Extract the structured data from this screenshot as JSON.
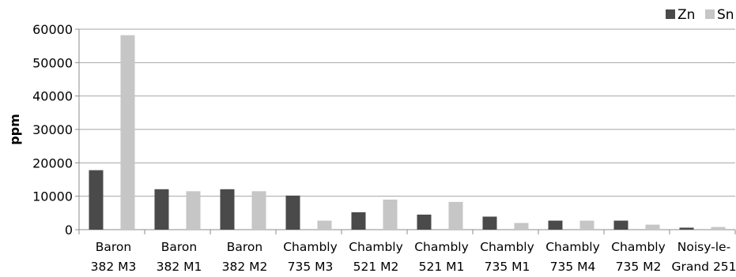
{
  "chart_data": {
    "type": "bar",
    "title": "",
    "xlabel": "",
    "ylabel": "ppm",
    "ylim": [
      0,
      60000
    ],
    "yticks": [
      0,
      10000,
      20000,
      30000,
      40000,
      50000,
      60000
    ],
    "grid": true,
    "legend_position": "top-right",
    "categories": [
      [
        "Baron",
        "382 M3"
      ],
      [
        "Baron",
        "382 M1"
      ],
      [
        "Baron",
        "382 M2"
      ],
      [
        "Chambly",
        "735 M3"
      ],
      [
        "Chambly",
        "521 M2"
      ],
      [
        "Chambly",
        "521 M1"
      ],
      [
        "Chambly",
        "735 M1"
      ],
      [
        "Chambly",
        "735 M4"
      ],
      [
        "Chambly",
        "735 M2"
      ],
      [
        "Noisy-le-",
        "Grand 251"
      ]
    ],
    "series": [
      {
        "name": "Zn",
        "color": "#4a4a4a",
        "values": [
          17800,
          12100,
          12100,
          10200,
          5200,
          4500,
          3900,
          2700,
          2700,
          600
        ]
      },
      {
        "name": "Sn",
        "color": "#c6c6c6",
        "values": [
          58200,
          11500,
          11500,
          2700,
          9000,
          8300,
          2000,
          2700,
          1500,
          800
        ]
      }
    ]
  }
}
